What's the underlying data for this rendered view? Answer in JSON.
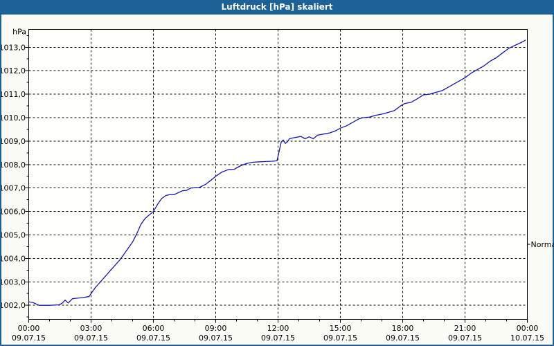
{
  "window": {
    "title": "Luftdruck [hPa] skaliert"
  },
  "colors": {
    "titlebar_bg": "#1c6296",
    "titlebar_text": "#ffffff",
    "window_border": "#1c6296",
    "background": "#fbfcf5",
    "plot_bg": "#fffffb",
    "line": "#1515b5",
    "grid": "#000000",
    "axis": "#000000",
    "text": "#000000"
  },
  "chart_data": {
    "type": "line",
    "title": "Luftdruck [hPa] skaliert",
    "ylabel": "hPa",
    "xlabel": "",
    "grid": "dashed",
    "legend": "none",
    "ylim": [
      1001.4,
      1013.76
    ],
    "xlim_hours": [
      0,
      24
    ],
    "y_minor_step": 0.5,
    "x_minor_step_hours": 1,
    "y_ticks": [
      {
        "value": 1013,
        "label": "1013,0"
      },
      {
        "value": 1012,
        "label": "1012,0"
      },
      {
        "value": 1011,
        "label": "1011,0"
      },
      {
        "value": 1010,
        "label": "1010,0"
      },
      {
        "value": 1009,
        "label": "1009,0"
      },
      {
        "value": 1008,
        "label": "1008,0"
      },
      {
        "value": 1007,
        "label": "1007,0"
      },
      {
        "value": 1006,
        "label": "1006,0"
      },
      {
        "value": 1005,
        "label": "1005,0"
      },
      {
        "value": 1004,
        "label": "1004,0"
      },
      {
        "value": 1003,
        "label": "1003,0"
      },
      {
        "value": 1002,
        "label": "1002,0"
      }
    ],
    "x_ticks": [
      {
        "hour": 0,
        "time": "00:00",
        "date": "09.07.15"
      },
      {
        "hour": 3,
        "time": "03:00",
        "date": "09.07.15"
      },
      {
        "hour": 6,
        "time": "06:00",
        "date": "09.07.15"
      },
      {
        "hour": 9,
        "time": "09:00",
        "date": "09.07.15"
      },
      {
        "hour": 12,
        "time": "12:00",
        "date": "09.07.15"
      },
      {
        "hour": 15,
        "time": "15:00",
        "date": "09.07.15"
      },
      {
        "hour": 18,
        "time": "18:00",
        "date": "09.07.15"
      },
      {
        "hour": 21,
        "time": "21:00",
        "date": "09.07.15"
      },
      {
        "hour": 24,
        "time": "00:00",
        "date": "10.07.15"
      }
    ],
    "annotations": [
      {
        "label": "Normal",
        "value": 1004.6,
        "side": "right"
      }
    ],
    "series": [
      {
        "name": "Luftdruck",
        "color": "#1515b5",
        "points_hour_value": [
          [
            0.0,
            1002.15
          ],
          [
            0.2,
            1002.12
          ],
          [
            0.5,
            1002.0
          ],
          [
            1.0,
            1002.0
          ],
          [
            1.45,
            1002.02
          ],
          [
            1.6,
            1002.08
          ],
          [
            1.75,
            1002.22
          ],
          [
            1.9,
            1002.1
          ],
          [
            2.1,
            1002.28
          ],
          [
            2.3,
            1002.3
          ],
          [
            2.6,
            1002.33
          ],
          [
            2.9,
            1002.37
          ],
          [
            3.0,
            1002.5
          ],
          [
            3.2,
            1002.75
          ],
          [
            3.4,
            1002.95
          ],
          [
            3.6,
            1003.15
          ],
          [
            3.8,
            1003.35
          ],
          [
            4.0,
            1003.55
          ],
          [
            4.2,
            1003.75
          ],
          [
            4.4,
            1003.95
          ],
          [
            4.6,
            1004.2
          ],
          [
            4.8,
            1004.45
          ],
          [
            5.0,
            1004.7
          ],
          [
            5.2,
            1005.05
          ],
          [
            5.4,
            1005.45
          ],
          [
            5.6,
            1005.7
          ],
          [
            5.8,
            1005.85
          ],
          [
            6.0,
            1006.0
          ],
          [
            6.2,
            1006.3
          ],
          [
            6.4,
            1006.55
          ],
          [
            6.6,
            1006.68
          ],
          [
            6.8,
            1006.72
          ],
          [
            7.0,
            1006.72
          ],
          [
            7.2,
            1006.8
          ],
          [
            7.4,
            1006.88
          ],
          [
            7.6,
            1006.9
          ],
          [
            7.8,
            1007.0
          ],
          [
            8.2,
            1007.02
          ],
          [
            8.5,
            1007.15
          ],
          [
            8.8,
            1007.35
          ],
          [
            9.0,
            1007.5
          ],
          [
            9.3,
            1007.68
          ],
          [
            9.6,
            1007.78
          ],
          [
            9.9,
            1007.8
          ],
          [
            10.2,
            1007.95
          ],
          [
            10.5,
            1008.05
          ],
          [
            10.8,
            1008.1
          ],
          [
            11.2,
            1008.12
          ],
          [
            11.7,
            1008.14
          ],
          [
            11.95,
            1008.16
          ],
          [
            12.05,
            1008.55
          ],
          [
            12.15,
            1008.95
          ],
          [
            12.25,
            1009.05
          ],
          [
            12.35,
            1008.9
          ],
          [
            12.45,
            1008.97
          ],
          [
            12.55,
            1009.1
          ],
          [
            12.8,
            1009.15
          ],
          [
            13.1,
            1009.2
          ],
          [
            13.3,
            1009.1
          ],
          [
            13.5,
            1009.18
          ],
          [
            13.7,
            1009.1
          ],
          [
            13.9,
            1009.25
          ],
          [
            14.2,
            1009.3
          ],
          [
            14.5,
            1009.35
          ],
          [
            14.8,
            1009.45
          ],
          [
            15.0,
            1009.55
          ],
          [
            15.3,
            1009.65
          ],
          [
            15.6,
            1009.8
          ],
          [
            15.9,
            1009.95
          ],
          [
            16.1,
            1010.0
          ],
          [
            16.4,
            1010.02
          ],
          [
            16.7,
            1010.1
          ],
          [
            17.0,
            1010.15
          ],
          [
            17.3,
            1010.22
          ],
          [
            17.6,
            1010.3
          ],
          [
            17.9,
            1010.5
          ],
          [
            18.1,
            1010.6
          ],
          [
            18.4,
            1010.65
          ],
          [
            18.7,
            1010.8
          ],
          [
            19.0,
            1010.97
          ],
          [
            19.3,
            1011.0
          ],
          [
            19.6,
            1011.08
          ],
          [
            19.9,
            1011.15
          ],
          [
            20.2,
            1011.3
          ],
          [
            20.5,
            1011.45
          ],
          [
            20.8,
            1011.6
          ],
          [
            21.0,
            1011.7
          ],
          [
            21.3,
            1011.9
          ],
          [
            21.6,
            1012.05
          ],
          [
            21.9,
            1012.2
          ],
          [
            22.2,
            1012.4
          ],
          [
            22.5,
            1012.55
          ],
          [
            22.8,
            1012.75
          ],
          [
            23.1,
            1012.95
          ],
          [
            23.4,
            1013.08
          ],
          [
            23.7,
            1013.2
          ],
          [
            23.85,
            1013.27
          ],
          [
            23.9,
            1013.3
          ]
        ]
      }
    ]
  }
}
